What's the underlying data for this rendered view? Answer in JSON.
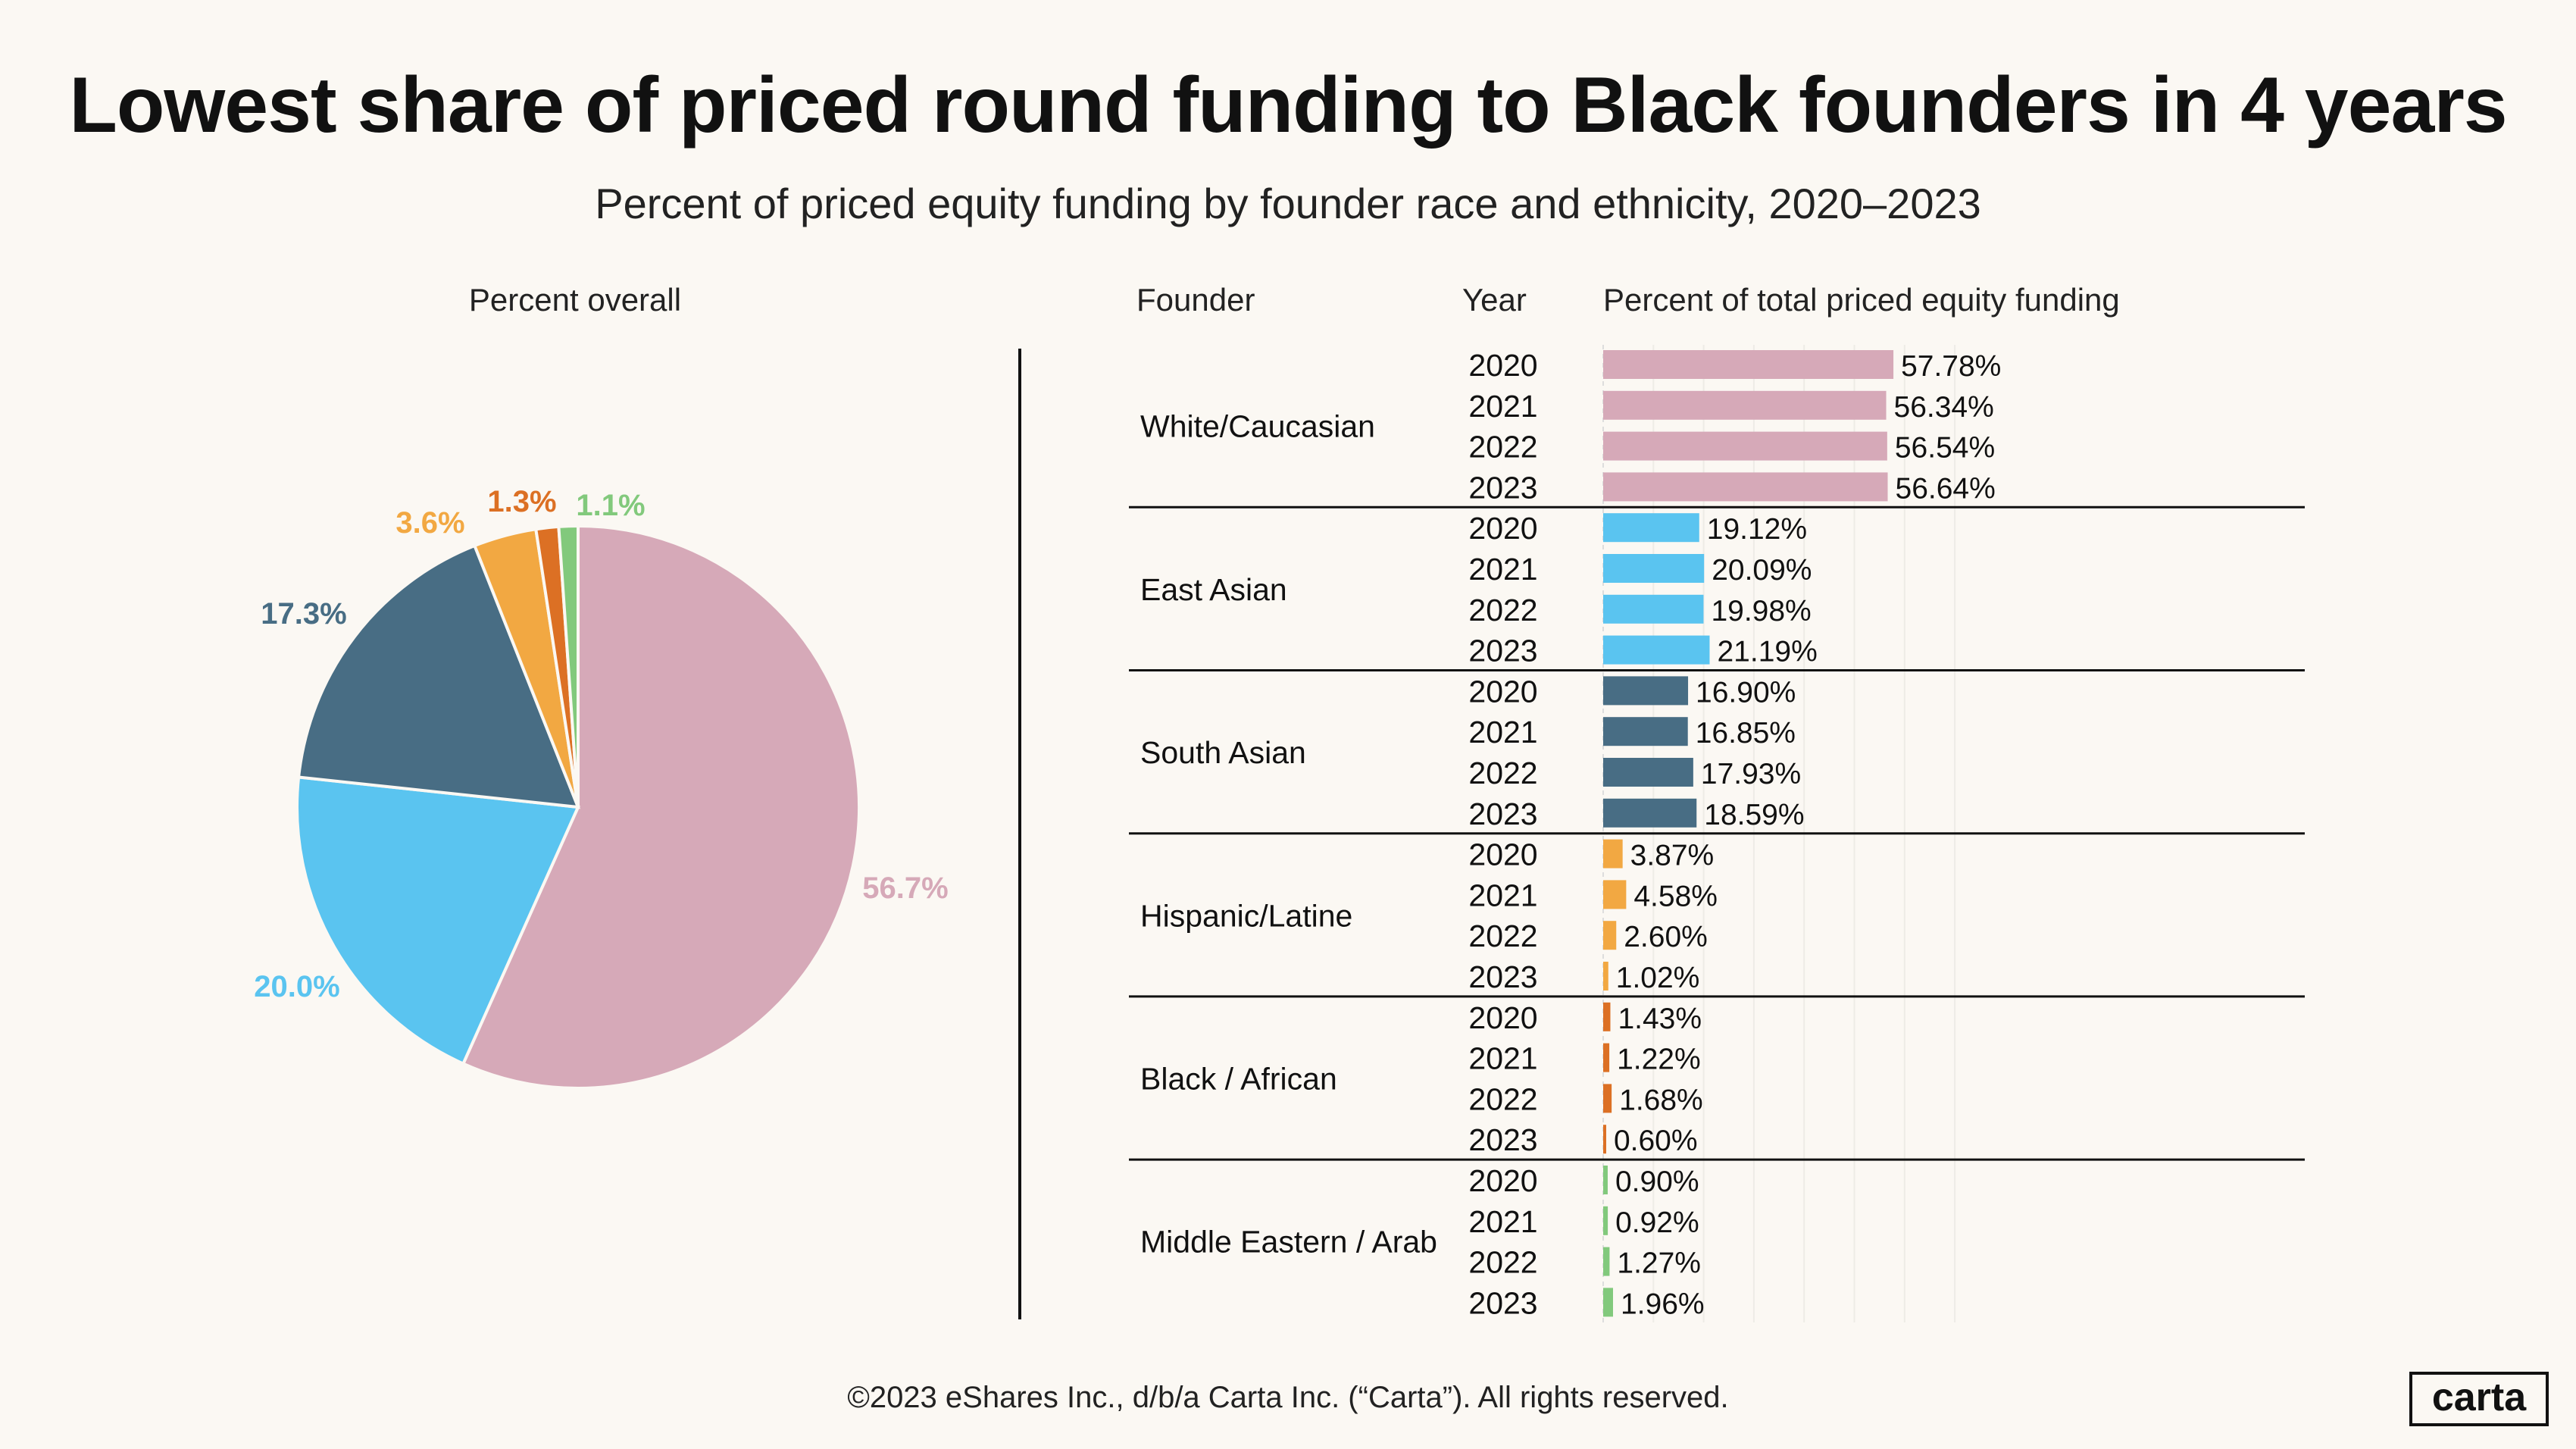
{
  "title": "Lowest share of priced round funding to Black founders in 4 years",
  "subtitle": "Percent of priced equity funding by founder race and ethnicity, 2020–2023",
  "footer": "©2023 eShares Inc., d/b/a Carta Inc. (“Carta”). All rights reserved.",
  "logo": "carta",
  "chart_data": [
    {
      "type": "pie",
      "title": "Percent overall",
      "slices": [
        {
          "label": "White/Caucasian",
          "value": 56.7,
          "display": "56.7%",
          "color": "#d6a9b8"
        },
        {
          "label": "East Asian",
          "value": 20.0,
          "display": "20.0%",
          "color": "#5ac4f0"
        },
        {
          "label": "South Asian",
          "value": 17.3,
          "display": "17.3%",
          "color": "#486d84"
        },
        {
          "label": "Hispanic/Latine",
          "value": 3.6,
          "display": "3.6%",
          "color": "#f2a842"
        },
        {
          "label": "Black / African",
          "value": 1.3,
          "display": "1.3%",
          "color": "#dc7024"
        },
        {
          "label": "Middle Eastern / Arab",
          "value": 1.1,
          "display": "1.1%",
          "color": "#82c97c"
        }
      ]
    },
    {
      "type": "bar",
      "orientation": "horizontal",
      "headers": {
        "founder": "Founder",
        "year": "Year",
        "value": "Percent of total priced equity funding"
      },
      "xlim": [
        0,
        70
      ],
      "grid": true,
      "groups": [
        {
          "founder": "White/Caucasian",
          "color": "#d6a9b8",
          "rows": [
            {
              "year": "2020",
              "value": 57.78,
              "label": "57.78%"
            },
            {
              "year": "2021",
              "value": 56.34,
              "label": "56.34%"
            },
            {
              "year": "2022",
              "value": 56.54,
              "label": "56.54%"
            },
            {
              "year": "2023",
              "value": 56.64,
              "label": "56.64%"
            }
          ]
        },
        {
          "founder": "East Asian",
          "color": "#5ac4f0",
          "rows": [
            {
              "year": "2020",
              "value": 19.12,
              "label": "19.12%"
            },
            {
              "year": "2021",
              "value": 20.09,
              "label": "20.09%"
            },
            {
              "year": "2022",
              "value": 19.98,
              "label": "19.98%"
            },
            {
              "year": "2023",
              "value": 21.19,
              "label": "21.19%"
            }
          ]
        },
        {
          "founder": "South Asian",
          "color": "#486d84",
          "rows": [
            {
              "year": "2020",
              "value": 16.9,
              "label": "16.90%"
            },
            {
              "year": "2021",
              "value": 16.85,
              "label": "16.85%"
            },
            {
              "year": "2022",
              "value": 17.93,
              "label": "17.93%"
            },
            {
              "year": "2023",
              "value": 18.59,
              "label": "18.59%"
            }
          ]
        },
        {
          "founder": "Hispanic/Latine",
          "color": "#f2a842",
          "rows": [
            {
              "year": "2020",
              "value": 3.87,
              "label": "3.87%"
            },
            {
              "year": "2021",
              "value": 4.58,
              "label": "4.58%"
            },
            {
              "year": "2022",
              "value": 2.6,
              "label": "2.60%"
            },
            {
              "year": "2023",
              "value": 1.02,
              "label": "1.02%"
            }
          ]
        },
        {
          "founder": "Black / African",
          "color": "#dc7024",
          "rows": [
            {
              "year": "2020",
              "value": 1.43,
              "label": "1.43%"
            },
            {
              "year": "2021",
              "value": 1.22,
              "label": "1.22%"
            },
            {
              "year": "2022",
              "value": 1.68,
              "label": "1.68%"
            },
            {
              "year": "2023",
              "value": 0.6,
              "label": "0.60%"
            }
          ]
        },
        {
          "founder": "Middle Eastern / Arab",
          "color": "#82c97c",
          "rows": [
            {
              "year": "2020",
              "value": 0.9,
              "label": "0.90%"
            },
            {
              "year": "2021",
              "value": 0.92,
              "label": "0.92%"
            },
            {
              "year": "2022",
              "value": 1.27,
              "label": "1.27%"
            },
            {
              "year": "2023",
              "value": 1.96,
              "label": "1.96%"
            }
          ]
        }
      ]
    }
  ]
}
